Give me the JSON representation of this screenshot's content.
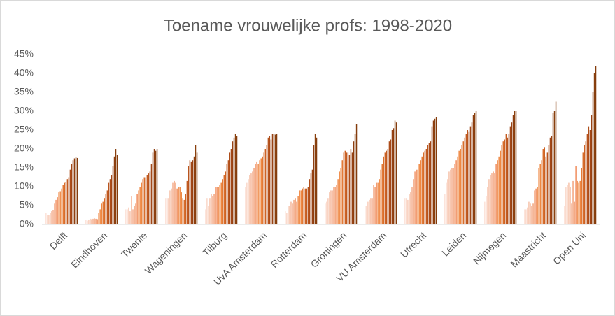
{
  "chart_data": {
    "type": "bar",
    "title": "Toename vrouwelijke profs: 1998-2020",
    "categories": [
      "Delft",
      "Eindhoven",
      "Twente",
      "Wageningen",
      "Tilburg",
      "UvA Amsterdam",
      "Rotterdam",
      "Groningen",
      "VU Amsterdam",
      "Utrecht",
      "Leiden",
      "Nijmegen",
      "Maastricht",
      "Open Uni"
    ],
    "series": [
      {
        "color": "#fbe0d6",
        "values": [
          3,
          1.2,
          4,
          7,
          4,
          10,
          3.5,
          5.5,
          5,
          7,
          8,
          6,
          4,
          5
        ]
      },
      {
        "color": "#f9d5c6",
        "values": [
          2.5,
          1,
          4,
          7,
          7,
          11,
          3,
          6,
          5,
          7,
          11,
          7.5,
          4,
          10
        ]
      },
      {
        "color": "#f8cab6",
        "values": [
          2.5,
          1.3,
          4.5,
          7,
          5,
          12,
          5,
          7,
          6,
          6.5,
          12,
          10,
          4.5,
          10.5
        ]
      },
      {
        "color": "#f6bfa6",
        "values": [
          3,
          1.5,
          3.5,
          9,
          7,
          13,
          5,
          8.5,
          6.5,
          8,
          14,
          12,
          6,
          11
        ]
      },
      {
        "color": "#f5b496",
        "values": [
          3.5,
          1.4,
          7.5,
          9.5,
          8,
          13.5,
          6,
          9,
          7,
          8.5,
          14.5,
          13,
          5.5,
          10
        ]
      },
      {
        "color": "#f4a986",
        "values": [
          3.8,
          1.5,
          4,
          11,
          7.5,
          14,
          5.5,
          9,
          7,
          10,
          15,
          13.5,
          5,
          5.5
        ]
      },
      {
        "color": "#f29e76",
        "values": [
          5.5,
          1.6,
          5,
          11.5,
          8,
          15,
          6.5,
          10,
          10.5,
          12,
          15,
          14,
          5.5,
          11.5
        ]
      },
      {
        "color": "#f19366",
        "values": [
          6.5,
          1.5,
          5.5,
          11,
          10,
          16,
          7,
          10,
          10,
          14,
          16,
          13.5,
          9,
          6
        ]
      },
      {
        "color": "#f08856",
        "values": [
          7.2,
          1.4,
          8,
          9.5,
          10,
          16.5,
          6,
          10.5,
          11,
          14.5,
          17,
          16,
          9.5,
          15.5
        ]
      },
      {
        "color": "#ef8846",
        "values": [
          8.5,
          3,
          9,
          10,
          10,
          16,
          7.5,
          12,
          11,
          14.5,
          18,
          17,
          10,
          11.5
        ]
      },
      {
        "color": "#ee8239",
        "values": [
          8.8,
          4,
          10,
          10,
          10.5,
          17,
          9,
          14,
          12,
          16,
          19.5,
          18,
          15,
          11
        ]
      },
      {
        "color": "#ed7d31",
        "values": [
          9.5,
          5.5,
          11,
          8.5,
          11,
          17.5,
          9,
          15,
          14.5,
          17,
          20,
          19.5,
          16,
          11.5
        ]
      },
      {
        "color": "#e2732d",
        "values": [
          10.5,
          6,
          12,
          7,
          12,
          18,
          9.5,
          17,
          16,
          18,
          21,
          21,
          17,
          15
        ]
      },
      {
        "color": "#d86b29",
        "values": [
          11,
          7,
          12.5,
          6.5,
          13,
          19,
          10,
          19,
          18,
          19,
          22,
          22,
          20,
          19
        ]
      },
      {
        "color": "#cd6325",
        "values": [
          11.3,
          8,
          12.5,
          8,
          14,
          20,
          9.5,
          19.5,
          19,
          19.5,
          23,
          22.5,
          20.5,
          21
        ]
      },
      {
        "color": "#c25b21",
        "values": [
          12,
          9,
          13,
          11.5,
          16,
          21,
          9.5,
          19,
          19.5,
          20,
          24,
          24,
          18,
          22
        ]
      },
      {
        "color": "#b8541e",
        "values": [
          12.5,
          11,
          13.5,
          15.5,
          17,
          23,
          10,
          19,
          20,
          21,
          25,
          23,
          19,
          24
        ]
      },
      {
        "color": "#ad4d1a",
        "values": [
          14.5,
          12,
          14,
          17,
          19,
          23.5,
          12,
          18.5,
          22,
          21.5,
          24.5,
          24,
          21,
          26
        ]
      },
      {
        "color": "#a34717",
        "values": [
          16,
          13,
          16,
          16.5,
          20,
          22.5,
          13.5,
          20,
          22.5,
          22,
          26,
          26,
          23,
          25
        ]
      },
      {
        "color": "#984213",
        "values": [
          17,
          15.5,
          19,
          17,
          22,
          24,
          14.5,
          19,
          25,
          26,
          27,
          27,
          23.5,
          29
        ]
      },
      {
        "color": "#8e3e10",
        "values": [
          17.5,
          18,
          20,
          18,
          23,
          24,
          21,
          22,
          25.5,
          27.5,
          29,
          29,
          29.5,
          35
        ]
      },
      {
        "color": "#89400e",
        "values": [
          17.8,
          20,
          19.5,
          21,
          24,
          23.8,
          24,
          24,
          27.5,
          28,
          29.5,
          30,
          30,
          40
        ]
      },
      {
        "color": "#843c0c",
        "values": [
          17.6,
          18.5,
          20,
          19,
          23.5,
          24,
          23,
          26.5,
          27,
          28.5,
          30,
          30,
          32.5,
          42
        ]
      }
    ],
    "ylim": [
      0,
      45
    ],
    "yticks": [
      {
        "value": 0,
        "label": "0%"
      },
      {
        "value": 5,
        "label": "5%"
      },
      {
        "value": 10,
        "label": "10%"
      },
      {
        "value": 15,
        "label": "15%"
      },
      {
        "value": 20,
        "label": "20%"
      },
      {
        "value": 25,
        "label": "25%"
      },
      {
        "value": 30,
        "label": "30%"
      },
      {
        "value": 35,
        "label": "35%"
      },
      {
        "value": 40,
        "label": "40%"
      },
      {
        "value": 45,
        "label": "45%"
      }
    ],
    "grid": false
  }
}
